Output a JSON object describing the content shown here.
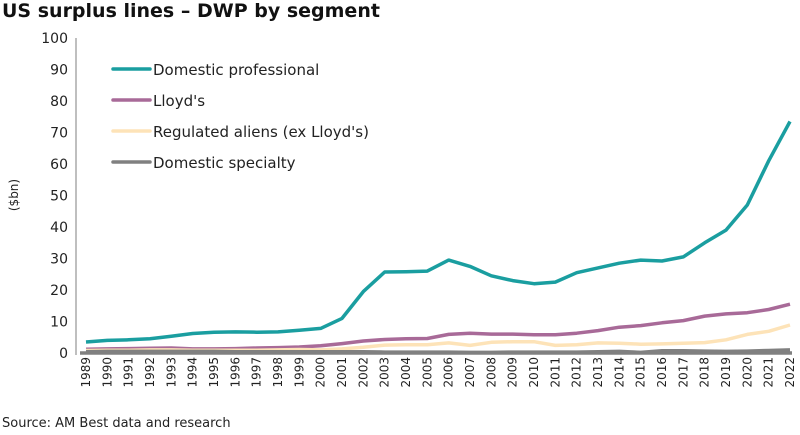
{
  "chart_data": {
    "type": "line",
    "title": "US surplus lines – DWP by segment",
    "ylabel": "($bn)",
    "xlabel": "",
    "ylim": [
      0,
      100
    ],
    "yticks": [
      0,
      10,
      20,
      30,
      40,
      50,
      60,
      70,
      80,
      90,
      100
    ],
    "grid": false,
    "legend_placement": "top-left",
    "x": [
      "1989",
      "1990",
      "1991",
      "1992",
      "1993",
      "1994",
      "1995",
      "1996",
      "1997",
      "1998",
      "1999",
      "2000",
      "2001",
      "2002",
      "2003",
      "2004",
      "2005",
      "2006",
      "2007",
      "2008",
      "2009",
      "2010",
      "2011",
      "2012",
      "2013",
      "2014",
      "2015",
      "2016",
      "2017",
      "2018",
      "2019",
      "2020",
      "2021",
      "2022"
    ],
    "series": [
      {
        "name": "Domestic professional",
        "color": "#1a9ea0",
        "values": [
          3.5,
          4,
          4.2,
          4.5,
          5.3,
          6.2,
          6.6,
          6.7,
          6.6,
          6.7,
          7.2,
          7.8,
          11,
          19.5,
          25.7,
          25.8,
          26,
          29.5,
          27.5,
          24.5,
          23,
          22,
          22.5,
          25.5,
          27,
          28.5,
          29.5,
          29.2,
          30.5,
          35,
          39,
          47,
          61,
          73.5
        ]
      },
      {
        "name": "Lloyd's",
        "color": "#a86a98",
        "values": [
          1.2,
          1.3,
          1.4,
          1.5,
          1.6,
          1.3,
          1.3,
          1.4,
          1.6,
          1.7,
          1.9,
          2.3,
          3,
          3.8,
          4.3,
          4.5,
          4.6,
          5.9,
          6.3,
          6,
          6,
          5.8,
          5.8,
          6.3,
          7.1,
          8.2,
          8.7,
          9.6,
          10.3,
          11.7,
          12.4,
          12.8,
          13.8,
          15.5
        ]
      },
      {
        "name": "Regulated aliens (ex Lloyd's)",
        "color": "#fde3b8",
        "values": [
          0.8,
          0.9,
          0.9,
          1,
          1,
          0.9,
          0.9,
          0.9,
          0.9,
          1,
          1.1,
          1,
          1.3,
          1.8,
          2.5,
          2.6,
          2.6,
          3.2,
          2.4,
          3.4,
          3.6,
          3.6,
          2.4,
          2.6,
          3.2,
          3.1,
          2.8,
          2.9,
          3.1,
          3.3,
          4.2,
          5.9,
          6.9,
          8.9
        ]
      },
      {
        "name": "Domestic specialty",
        "color": "#808080",
        "values": [
          0.4,
          0.5,
          0.5,
          0.5,
          0.5,
          0.5,
          0.5,
          0.4,
          0.4,
          0.4,
          0.4,
          0.4,
          0.4,
          0.4,
          0.3,
          0.3,
          0.3,
          0.3,
          0.2,
          0.2,
          0.3,
          0.3,
          0.3,
          0.3,
          0.4,
          0.5,
          0.2,
          0.7,
          0.7,
          0.6,
          0.5,
          0.6,
          0.8,
          1.0
        ]
      }
    ],
    "source": "Source: AM Best data and research"
  }
}
